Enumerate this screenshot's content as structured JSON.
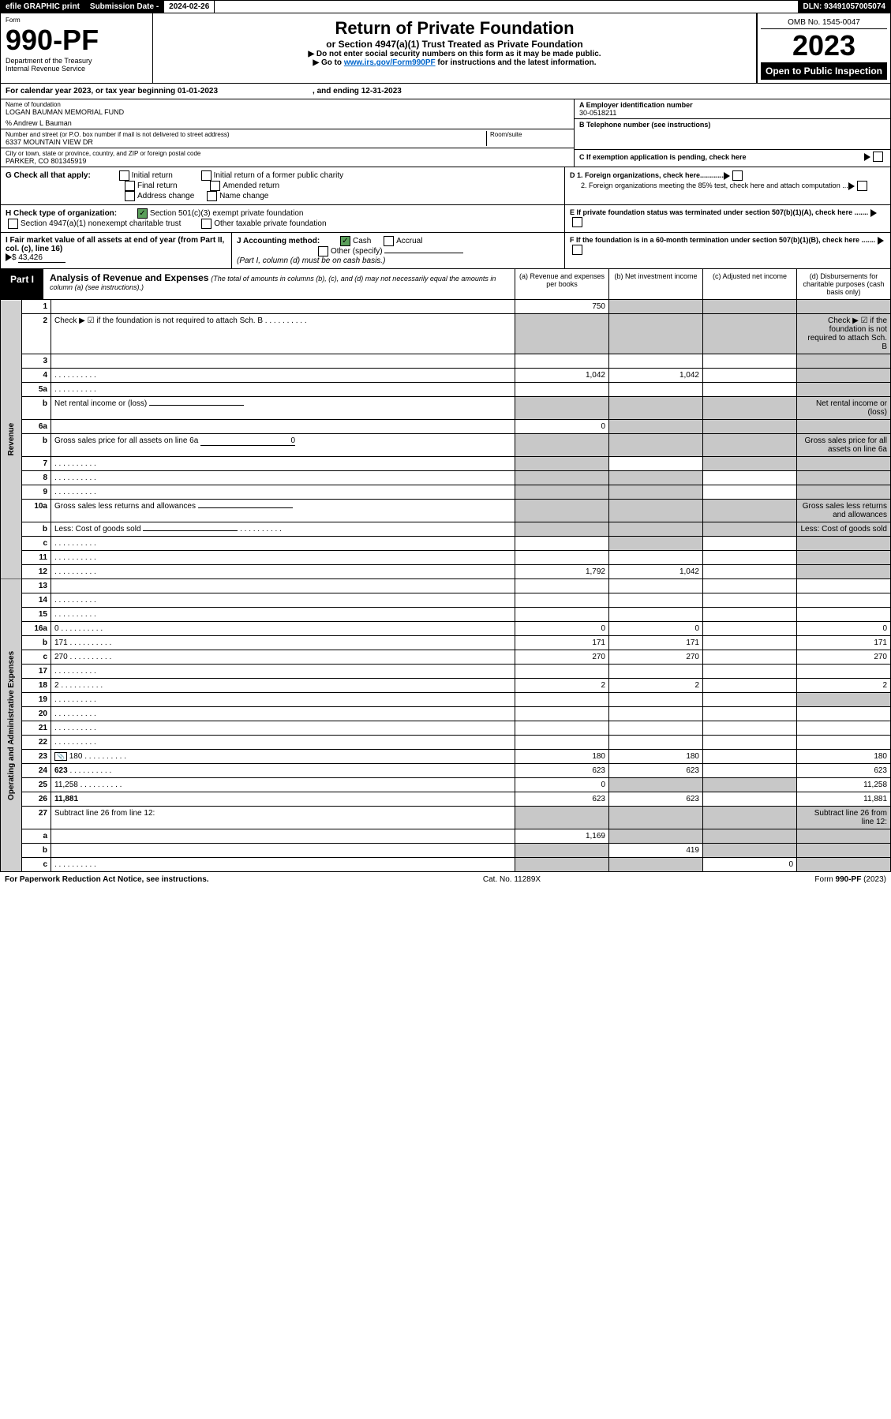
{
  "header": {
    "efile": "efile GRAPHIC print",
    "sub_label": "Submission Date - ",
    "sub_date": "2024-02-26",
    "dln": "DLN: 93491057005074"
  },
  "top": {
    "form_label": "Form",
    "form_no": "990-PF",
    "dept": "Department of the Treasury",
    "irs": "Internal Revenue Service",
    "title": "Return of Private Foundation",
    "subtitle": "or Section 4947(a)(1) Trust Treated as Private Foundation",
    "instr1": "▶ Do not enter social security numbers on this form as it may be made public.",
    "instr2_pre": "▶ Go to ",
    "instr2_link": "www.irs.gov/Form990PF",
    "instr2_post": " for instructions and the latest information.",
    "omb": "OMB No. 1545-0047",
    "year": "2023",
    "open": "Open to Public Inspection"
  },
  "calyear": {
    "text": "For calendar year 2023, or tax year beginning 01-01-2023",
    "ending": ", and ending 12-31-2023"
  },
  "info": {
    "name_label": "Name of foundation",
    "name": "LOGAN BAUMAN MEMORIAL FUND",
    "co": "% Andrew L Bauman",
    "addr_label": "Number and street (or P.O. box number if mail is not delivered to street address)",
    "addr": "6337 MOUNTAIN VIEW DR",
    "room_label": "Room/suite",
    "city_label": "City or town, state or province, country, and ZIP or foreign postal code",
    "city": "PARKER, CO  801345919",
    "a_label": "A Employer identification number",
    "a_val": "30-0518211",
    "b_label": "B Telephone number (see instructions)",
    "c_label": "C If exemption application is pending, check here",
    "d1": "D 1. Foreign organizations, check here............",
    "d2": "2. Foreign organizations meeting the 85% test, check here and attach computation ...",
    "e_label": "E  If private foundation status was terminated under section 507(b)(1)(A), check here .......",
    "f_label": "F  If the foundation is in a 60-month termination under section 507(b)(1)(B), check here .......",
    "g_label": "G Check all that apply:",
    "g_initial": "Initial return",
    "g_initial_pub": "Initial return of a former public charity",
    "g_final": "Final return",
    "g_amended": "Amended return",
    "g_addr": "Address change",
    "g_name": "Name change",
    "h_label": "H Check type of organization:",
    "h_501": "Section 501(c)(3) exempt private foundation",
    "h_4947": "Section 4947(a)(1) nonexempt charitable trust",
    "h_other": "Other taxable private foundation",
    "i_label": "I Fair market value of all assets at end of year (from Part II, col. (c), line 16)",
    "i_val": "43,426",
    "j_label": "J Accounting method:",
    "j_cash": "Cash",
    "j_accrual": "Accrual",
    "j_other": "Other (specify)",
    "j_note": "(Part I, column (d) must be on cash basis.)"
  },
  "part1": {
    "label": "Part I",
    "title": "Analysis of Revenue and Expenses",
    "title_note": "(The total of amounts in columns (b), (c), and (d) may not necessarily equal the amounts in column (a) (see instructions).)",
    "col_a": "(a)  Revenue and expenses per books",
    "col_b": "(b)  Net investment income",
    "col_c": "(c)  Adjusted net income",
    "col_d": "(d)  Disbursements for charitable purposes (cash basis only)",
    "side_rev": "Revenue",
    "side_exp": "Operating and Administrative Expenses",
    "rows": [
      {
        "n": "1",
        "d": "",
        "a": "750",
        "b": "",
        "c": "",
        "greyBCD": true
      },
      {
        "n": "2",
        "d": "Check ▶ ☑ if the foundation is not required to attach Sch. B",
        "dotted": true,
        "greyAll": true
      },
      {
        "n": "3",
        "d": "",
        "a": "",
        "b": "",
        "c": "",
        "greyD": true
      },
      {
        "n": "4",
        "d": "",
        "dotted": true,
        "a": "1,042",
        "b": "1,042",
        "c": "",
        "greyD": true
      },
      {
        "n": "5a",
        "d": "",
        "dotted": true,
        "a": "",
        "b": "",
        "c": "",
        "greyD": true
      },
      {
        "n": "b",
        "d": "Net rental income or (loss)",
        "underline": true,
        "greyAll": true
      },
      {
        "n": "6a",
        "d": "",
        "a": "0",
        "b": "",
        "c": "",
        "greyBCD": true
      },
      {
        "n": "b",
        "d": "Gross sales price for all assets on line 6a",
        "underline": true,
        "uval": "0",
        "greyAll": true
      },
      {
        "n": "7",
        "d": "",
        "dotted": true,
        "a": "",
        "b": "",
        "c": "",
        "greyA": true,
        "greyCD": true
      },
      {
        "n": "8",
        "d": "",
        "dotted": true,
        "a": "",
        "b": "",
        "c": "",
        "greyAB": true,
        "greyD": true
      },
      {
        "n": "9",
        "d": "",
        "dotted": true,
        "a": "",
        "b": "",
        "c": "",
        "greyAB": true,
        "greyD": true
      },
      {
        "n": "10a",
        "d": "Gross sales less returns and allowances",
        "underline": true,
        "greyAll": true
      },
      {
        "n": "b",
        "d": "Less: Cost of goods sold",
        "dotted": true,
        "underline": true,
        "greyAll": true
      },
      {
        "n": "c",
        "d": "",
        "dotted": true,
        "a": "",
        "b": "",
        "c": "",
        "greyB": true,
        "greyD": true
      },
      {
        "n": "11",
        "d": "",
        "dotted": true,
        "a": "",
        "b": "",
        "c": "",
        "greyD": true
      },
      {
        "n": "12",
        "d": "",
        "dotted": true,
        "bold": true,
        "a": "1,792",
        "b": "1,042",
        "c": "",
        "greyD": true
      },
      {
        "n": "13",
        "d": "",
        "a": "",
        "b": "",
        "c": ""
      },
      {
        "n": "14",
        "d": "",
        "dotted": true,
        "a": "",
        "b": "",
        "c": ""
      },
      {
        "n": "15",
        "d": "",
        "dotted": true,
        "a": "",
        "b": "",
        "c": ""
      },
      {
        "n": "16a",
        "d": "0",
        "dotted": true,
        "a": "0",
        "b": "0",
        "c": ""
      },
      {
        "n": "b",
        "d": "171",
        "dotted": true,
        "a": "171",
        "b": "171",
        "c": ""
      },
      {
        "n": "c",
        "d": "270",
        "dotted": true,
        "a": "270",
        "b": "270",
        "c": ""
      },
      {
        "n": "17",
        "d": "",
        "dotted": true,
        "a": "",
        "b": "",
        "c": ""
      },
      {
        "n": "18",
        "d": "2",
        "dotted": true,
        "a": "2",
        "b": "2",
        "c": ""
      },
      {
        "n": "19",
        "d": "",
        "dotted": true,
        "a": "",
        "b": "",
        "c": "",
        "greyD": true
      },
      {
        "n": "20",
        "d": "",
        "dotted": true,
        "a": "",
        "b": "",
        "c": ""
      },
      {
        "n": "21",
        "d": "",
        "dotted": true,
        "a": "",
        "b": "",
        "c": ""
      },
      {
        "n": "22",
        "d": "",
        "dotted": true,
        "a": "",
        "b": "",
        "c": ""
      },
      {
        "n": "23",
        "d": "180",
        "dotted": true,
        "icon": true,
        "a": "180",
        "b": "180",
        "c": ""
      },
      {
        "n": "24",
        "d": "623",
        "dotted": true,
        "bold": true,
        "a": "623",
        "b": "623",
        "c": ""
      },
      {
        "n": "25",
        "d": "11,258",
        "dotted": true,
        "a": "0",
        "b": "",
        "c": "",
        "greyBC": true
      },
      {
        "n": "26",
        "d": "11,881",
        "bold": true,
        "a": "623",
        "b": "623",
        "c": ""
      },
      {
        "n": "27",
        "d": "Subtract line 26 from line 12:",
        "greyABCD": true
      },
      {
        "n": "a",
        "d": "",
        "bold": true,
        "a": "1,169",
        "b": "",
        "c": "",
        "greyBCD": true
      },
      {
        "n": "b",
        "d": "",
        "bold": true,
        "a": "",
        "b": "419",
        "c": "",
        "greyA": true,
        "greyCD": true
      },
      {
        "n": "c",
        "d": "",
        "bold": true,
        "dotted": true,
        "a": "",
        "b": "",
        "c": "0",
        "greyAB": true,
        "greyD": true
      }
    ]
  },
  "footer": {
    "left": "For Paperwork Reduction Act Notice, see instructions.",
    "mid": "Cat. No. 11289X",
    "right": "Form 990-PF (2023)"
  }
}
